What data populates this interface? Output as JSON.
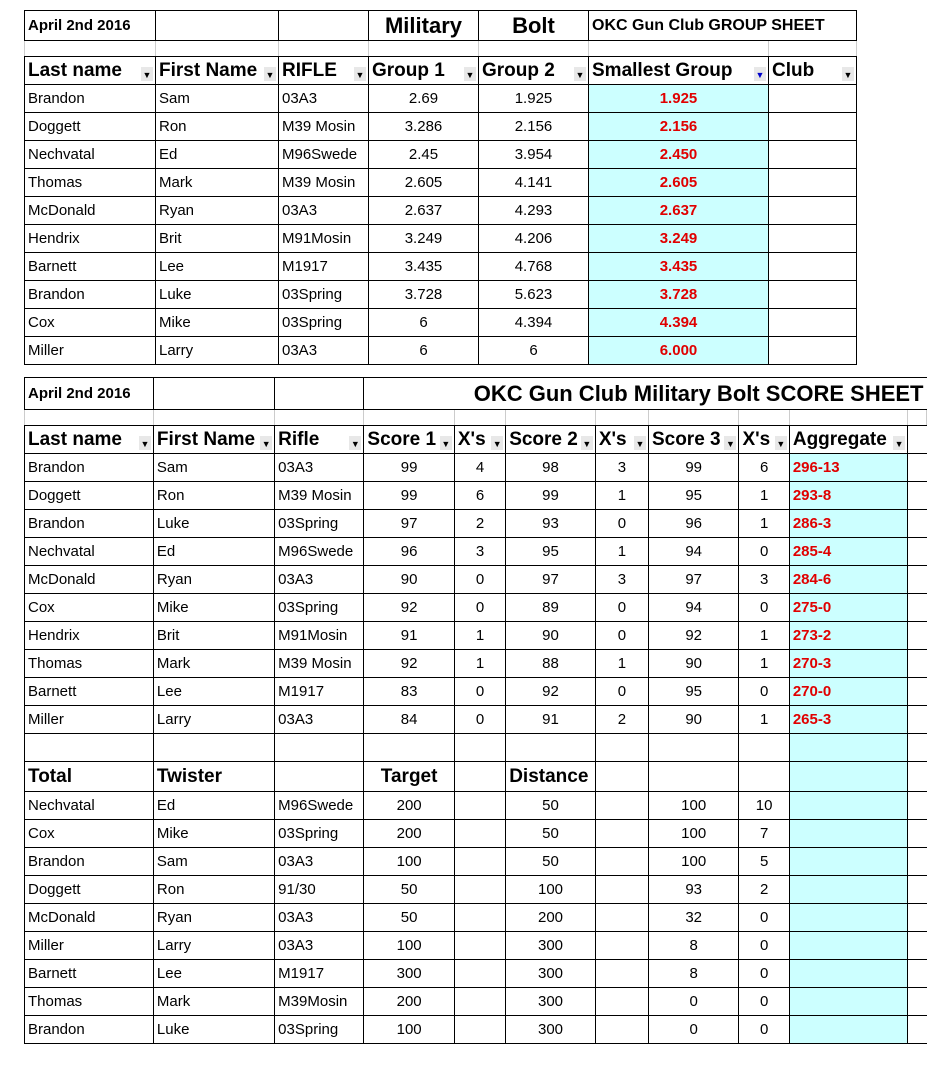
{
  "group_sheet": {
    "date": "April 2nd 2016",
    "title_1": "Military",
    "title_2": "Bolt",
    "title_3": "OKC Gun Club GROUP SHEET",
    "headers": [
      "Last name",
      "First Name",
      "RIFLE",
      "Group 1",
      "Group 2",
      "Smallest Group",
      "Club"
    ],
    "rows": [
      [
        "Brandon",
        "Sam",
        "03A3",
        "2.69",
        "1.925",
        "1.925",
        ""
      ],
      [
        "Doggett",
        "Ron",
        "M39 Mosin",
        "3.286",
        "2.156",
        "2.156",
        ""
      ],
      [
        "Nechvatal",
        "Ed",
        "M96Swede",
        "2.45",
        "3.954",
        "2.450",
        ""
      ],
      [
        "Thomas",
        "Mark",
        "M39 Mosin",
        "2.605",
        "4.141",
        "2.605",
        ""
      ],
      [
        "McDonald",
        "Ryan",
        "03A3",
        "2.637",
        "4.293",
        "2.637",
        ""
      ],
      [
        "Hendrix",
        "Brit",
        "M91Mosin",
        "3.249",
        "4.206",
        "3.249",
        ""
      ],
      [
        "Barnett",
        "Lee",
        "M1917",
        "3.435",
        "4.768",
        "3.435",
        ""
      ],
      [
        "Brandon",
        "Luke",
        "03Spring",
        "3.728",
        "5.623",
        "3.728",
        ""
      ],
      [
        "Cox",
        "Mike",
        "03Spring",
        "6",
        "4.394",
        "4.394",
        ""
      ],
      [
        "Miller",
        "Larry",
        "03A3",
        "6",
        "6",
        "6.000",
        ""
      ]
    ]
  },
  "score_sheet": {
    "date": "April 2nd 2016",
    "title": "OKC Gun Club Military Bolt SCORE SHEET",
    "headers": [
      "Last name",
      "First Name",
      "Rifle",
      "Score 1",
      "X's",
      "Score 2",
      "X's",
      "Score 3",
      "X's",
      "Aggregate"
    ],
    "rows": [
      [
        "Brandon",
        "Sam",
        "03A3",
        "99",
        "4",
        "98",
        "3",
        "99",
        "6",
        "296-13"
      ],
      [
        "Doggett",
        "Ron",
        "M39 Mosin",
        "99",
        "6",
        "99",
        "1",
        "95",
        "1",
        "293-8"
      ],
      [
        "Brandon",
        "Luke",
        "03Spring",
        "97",
        "2",
        "93",
        "0",
        "96",
        "1",
        "286-3"
      ],
      [
        "Nechvatal",
        "Ed",
        "M96Swede",
        "96",
        "3",
        "95",
        "1",
        "94",
        "0",
        "285-4"
      ],
      [
        "McDonald",
        "Ryan",
        "03A3",
        "90",
        "0",
        "97",
        "3",
        "97",
        "3",
        "284-6"
      ],
      [
        "Cox",
        "Mike",
        "03Spring",
        "92",
        "0",
        "89",
        "0",
        "94",
        "0",
        "275-0"
      ],
      [
        "Hendrix",
        "Brit",
        "M91Mosin",
        "91",
        "1",
        "90",
        "0",
        "92",
        "1",
        "273-2"
      ],
      [
        "Thomas",
        "Mark",
        "M39 Mosin",
        "92",
        "1",
        "88",
        "1",
        "90",
        "1",
        "270-3"
      ],
      [
        "Barnett",
        "Lee",
        "M1917",
        "83",
        "0",
        "92",
        "0",
        "95",
        "0",
        "270-0"
      ],
      [
        "Miller",
        "Larry",
        "03A3",
        "84",
        "0",
        "91",
        "2",
        "90",
        "1",
        "265-3"
      ]
    ]
  },
  "twister": {
    "headers": [
      "Total",
      "Twister",
      "",
      "Target",
      "",
      "Distance",
      "",
      "",
      "",
      ""
    ],
    "rows": [
      [
        "Nechvatal",
        "Ed",
        "M96Swede",
        "200",
        "",
        "50",
        "",
        "100",
        "10",
        ""
      ],
      [
        "Cox",
        "Mike",
        "03Spring",
        "200",
        "",
        "50",
        "",
        "100",
        "7",
        ""
      ],
      [
        "Brandon",
        "Sam",
        "03A3",
        "100",
        "",
        "50",
        "",
        "100",
        "5",
        ""
      ],
      [
        "Doggett",
        "Ron",
        "91/30",
        "50",
        "",
        "100",
        "",
        "93",
        "2",
        ""
      ],
      [
        "McDonald",
        "Ryan",
        "03A3",
        "50",
        "",
        "200",
        "",
        "32",
        "0",
        ""
      ],
      [
        "Miller",
        "Larry",
        "03A3",
        "100",
        "",
        "300",
        "",
        "8",
        "0",
        ""
      ],
      [
        "Barnett",
        "Lee",
        "M1917",
        "300",
        "",
        "300",
        "",
        "8",
        "0",
        ""
      ],
      [
        "Thomas",
        "Mark",
        "M39Mosin",
        "200",
        "",
        "300",
        "",
        "0",
        "0",
        ""
      ],
      [
        "Brandon",
        "Luke",
        "03Spring",
        "100",
        "",
        "300",
        "",
        "0",
        "0",
        ""
      ]
    ]
  },
  "colors": {
    "highlight": "#ccffff",
    "result_text": "#e00000"
  }
}
